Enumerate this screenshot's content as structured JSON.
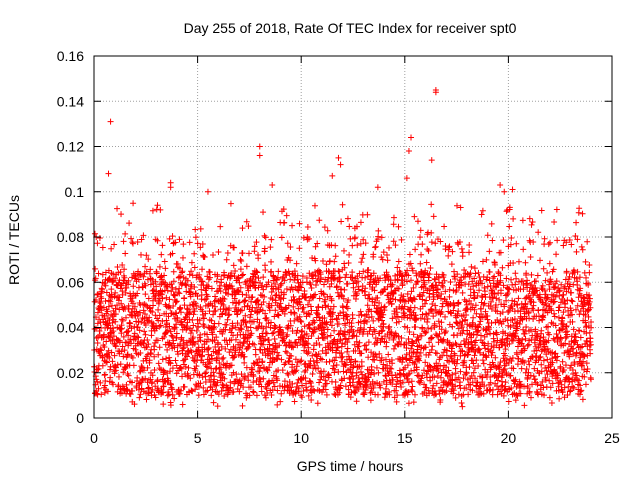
{
  "chart_data": {
    "type": "scatter",
    "title": "Day 255 of 2018, Rate Of TEC Index for receiver spt0",
    "xlabel": "GPS time / hours",
    "ylabel": "ROTI / TECUs",
    "xlim": [
      0,
      25
    ],
    "ylim": [
      0,
      0.16
    ],
    "x_ticks": [
      0,
      5,
      10,
      15,
      20,
      25
    ],
    "x_tick_labels": [
      "0",
      "5",
      "10",
      "15",
      "20",
      "25"
    ],
    "y_ticks": [
      0,
      0.02,
      0.04,
      0.06,
      0.08,
      0.1,
      0.12,
      0.14,
      0.16
    ],
    "y_tick_labels": [
      "0",
      "0.02",
      "0.04",
      "0.06",
      "0.08",
      "0.1",
      "0.12",
      "0.14",
      "0.16"
    ],
    "grid": true,
    "marker": "+",
    "marker_color": "#ff0000",
    "series": [
      {
        "name": "ROTI",
        "x_range": [
          0,
          24
        ],
        "typical_range": [
          0.005,
          0.08
        ],
        "notable_points": [
          {
            "x": 0.8,
            "y": 0.131
          },
          {
            "x": 0.7,
            "y": 0.108
          },
          {
            "x": 3.7,
            "y": 0.104
          },
          {
            "x": 3.7,
            "y": 0.102
          },
          {
            "x": 5.5,
            "y": 0.1
          },
          {
            "x": 8.0,
            "y": 0.12
          },
          {
            "x": 8.0,
            "y": 0.116
          },
          {
            "x": 8.6,
            "y": 0.103
          },
          {
            "x": 11.8,
            "y": 0.115
          },
          {
            "x": 11.9,
            "y": 0.112
          },
          {
            "x": 11.5,
            "y": 0.107
          },
          {
            "x": 13.7,
            "y": 0.102
          },
          {
            "x": 15.3,
            "y": 0.124
          },
          {
            "x": 15.2,
            "y": 0.118
          },
          {
            "x": 15.1,
            "y": 0.106
          },
          {
            "x": 16.5,
            "y": 0.145
          },
          {
            "x": 16.5,
            "y": 0.144
          },
          {
            "x": 16.3,
            "y": 0.114
          },
          {
            "x": 19.6,
            "y": 0.103
          },
          {
            "x": 20.2,
            "y": 0.101
          },
          {
            "x": 19.8,
            "y": 0.1
          }
        ]
      }
    ]
  }
}
